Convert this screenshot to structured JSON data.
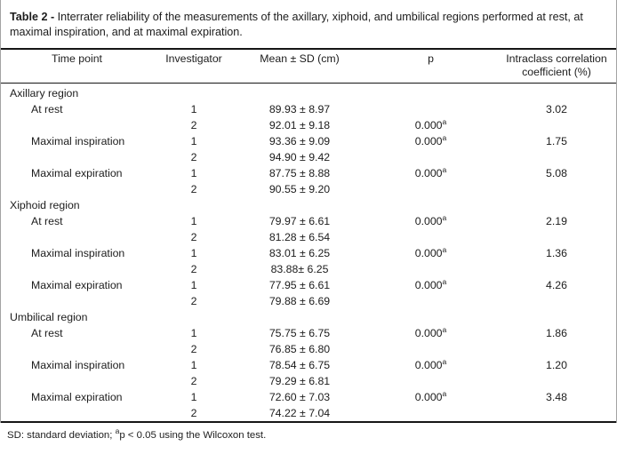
{
  "figure": {
    "title_label": "Table 2 -",
    "title_text": "Interrater reliability of the measurements of the axillary, xiphoid, and umbilical regions performed at rest, at maximal inspiration, and at maximal expiration.",
    "footnote_prefix": "SD: standard deviation; ",
    "footnote_marker": "a",
    "footnote_suffix": "p < 0.05 using the Wilcoxon test."
  },
  "table": {
    "headers": [
      "Time point",
      "Investigator",
      "Mean ± SD (cm)",
      "p",
      "Intraclass correlation coefficient (%)"
    ],
    "sections": [
      {
        "name": "Axillary region",
        "rows": [
          {
            "time_point": "At rest",
            "investigator": "1",
            "mean_sd": "89.93 ± 8.97",
            "p": "",
            "p_marker": "",
            "icc": "3.02"
          },
          {
            "time_point": "",
            "investigator": "2",
            "mean_sd": "92.01 ± 9.18",
            "p": "0.000",
            "p_marker": "a",
            "icc": ""
          },
          {
            "time_point": "Maximal inspiration",
            "investigator": "1",
            "mean_sd": "93.36 ± 9.09",
            "p": "0.000",
            "p_marker": "a",
            "icc": "1.75"
          },
          {
            "time_point": "",
            "investigator": "2",
            "mean_sd": "94.90 ± 9.42",
            "p": "",
            "p_marker": "",
            "icc": ""
          },
          {
            "time_point": "Maximal expiration",
            "investigator": "1",
            "mean_sd": "87.75 ± 8.88",
            "p": "0.000",
            "p_marker": "a",
            "icc": "5.08"
          },
          {
            "time_point": "",
            "investigator": "2",
            "mean_sd": "90.55 ± 9.20",
            "p": "",
            "p_marker": "",
            "icc": ""
          }
        ]
      },
      {
        "name": "Xiphoid region",
        "rows": [
          {
            "time_point": "At rest",
            "investigator": "1",
            "mean_sd": "79.97 ± 6.61",
            "p": "0.000",
            "p_marker": "a",
            "icc": "2.19"
          },
          {
            "time_point": "",
            "investigator": "2",
            "mean_sd": "81.28 ± 6.54",
            "p": "",
            "p_marker": "",
            "icc": ""
          },
          {
            "time_point": "Maximal inspiration",
            "investigator": "1",
            "mean_sd": "83.01 ± 6.25",
            "p": "0.000",
            "p_marker": "a",
            "icc": "1.36"
          },
          {
            "time_point": "",
            "investigator": "2",
            "mean_sd": "83.88± 6.25",
            "p": "",
            "p_marker": "",
            "icc": ""
          },
          {
            "time_point": "Maximal expiration",
            "investigator": "1",
            "mean_sd": "77.95 ± 6.61",
            "p": "0.000",
            "p_marker": "a",
            "icc": "4.26"
          },
          {
            "time_point": "",
            "investigator": "2",
            "mean_sd": "79.88 ± 6.69",
            "p": "",
            "p_marker": "",
            "icc": ""
          }
        ]
      },
      {
        "name": "Umbilical region",
        "rows": [
          {
            "time_point": "At rest",
            "investigator": "1",
            "mean_sd": "75.75 ± 6.75",
            "p": "0.000",
            "p_marker": "a",
            "icc": "1.86"
          },
          {
            "time_point": "",
            "investigator": "2",
            "mean_sd": "76.85 ± 6.80",
            "p": "",
            "p_marker": "",
            "icc": ""
          },
          {
            "time_point": "Maximal inspiration",
            "investigator": "1",
            "mean_sd": "78.54 ± 6.75",
            "p": "0.000",
            "p_marker": "a",
            "icc": "1.20"
          },
          {
            "time_point": "",
            "investigator": "2",
            "mean_sd": "79.29 ± 6.81",
            "p": "",
            "p_marker": "",
            "icc": ""
          },
          {
            "time_point": "Maximal expiration",
            "investigator": "1",
            "mean_sd": "72.60 ± 7.03",
            "p": "0.000",
            "p_marker": "a",
            "icc": "3.48"
          },
          {
            "time_point": "",
            "investigator": "2",
            "mean_sd": "74.22 ± 7.04",
            "p": "",
            "p_marker": "",
            "icc": ""
          }
        ]
      }
    ]
  },
  "colors": {
    "background": "#ffffff",
    "text": "#1c1c1c",
    "rule": "#161616",
    "frame_border": "#a3a3a3"
  }
}
